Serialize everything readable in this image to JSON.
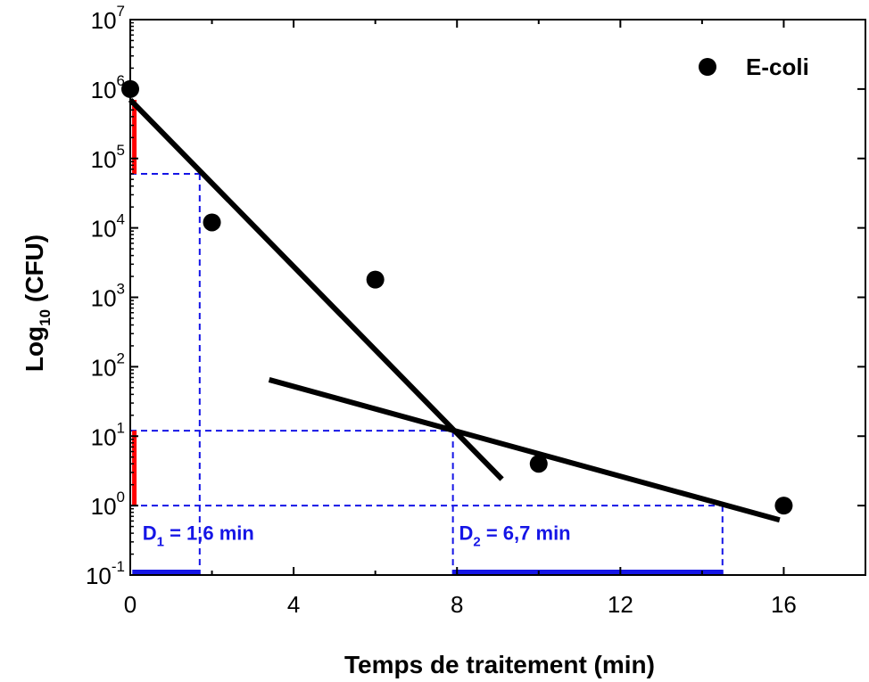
{
  "chart_data": {
    "type": "scatter",
    "xlabel": "Temps de traitement (min)",
    "ylabel": {
      "prefix": "Log",
      "sub": "10",
      "suffix": " (CFU)"
    },
    "xlim": [
      0,
      18
    ],
    "ylim_exp": [
      -1,
      7
    ],
    "yscale": "log",
    "x_ticks": [
      "0",
      "4",
      "8",
      "12",
      "16"
    ],
    "x_tick_values": [
      0,
      4,
      8,
      12,
      16
    ],
    "y_tick_exponents": [
      "-1",
      "0",
      "1",
      "2",
      "3",
      "4",
      "5",
      "6",
      "7"
    ],
    "y_tick_base": "10",
    "legend": {
      "position": "top-right",
      "label": "E-coli"
    },
    "series": [
      {
        "name": "E-coli",
        "points": [
          {
            "x": 0,
            "y": 1000000
          },
          {
            "x": 2,
            "y": 12000
          },
          {
            "x": 6,
            "y": 1800
          },
          {
            "x": 10,
            "y": 4
          },
          {
            "x": 16,
            "y": 1
          }
        ]
      }
    ],
    "fit_lines": [
      {
        "x": [
          0,
          9.1
        ],
        "y": [
          700000,
          2.4
        ]
      },
      {
        "x": [
          3.4,
          15.9
        ],
        "y": [
          65,
          0.62
        ]
      }
    ],
    "guides": {
      "h_upper": 60000,
      "h_mid": 12,
      "h_low": 1,
      "v1": 1.7,
      "v2": 7.9,
      "v3": 14.5,
      "red_segments": [
        {
          "x": 0.1,
          "y": [
            60000,
            700000
          ]
        },
        {
          "x": 0.1,
          "y": [
            1,
            12
          ]
        }
      ],
      "blue_bars": [
        {
          "x": [
            0.05,
            1.7
          ],
          "y": 0.1
        },
        {
          "x": [
            7.9,
            14.5
          ],
          "y": 0.1
        }
      ]
    },
    "annotations": [
      {
        "main": "D",
        "sub": "1",
        "rest": " = 1,6 min",
        "x": 0.3,
        "y": 0.32
      },
      {
        "main": "D",
        "sub": "2",
        "rest": " = 6,7 min",
        "x": 8.05,
        "y": 0.32
      }
    ]
  }
}
